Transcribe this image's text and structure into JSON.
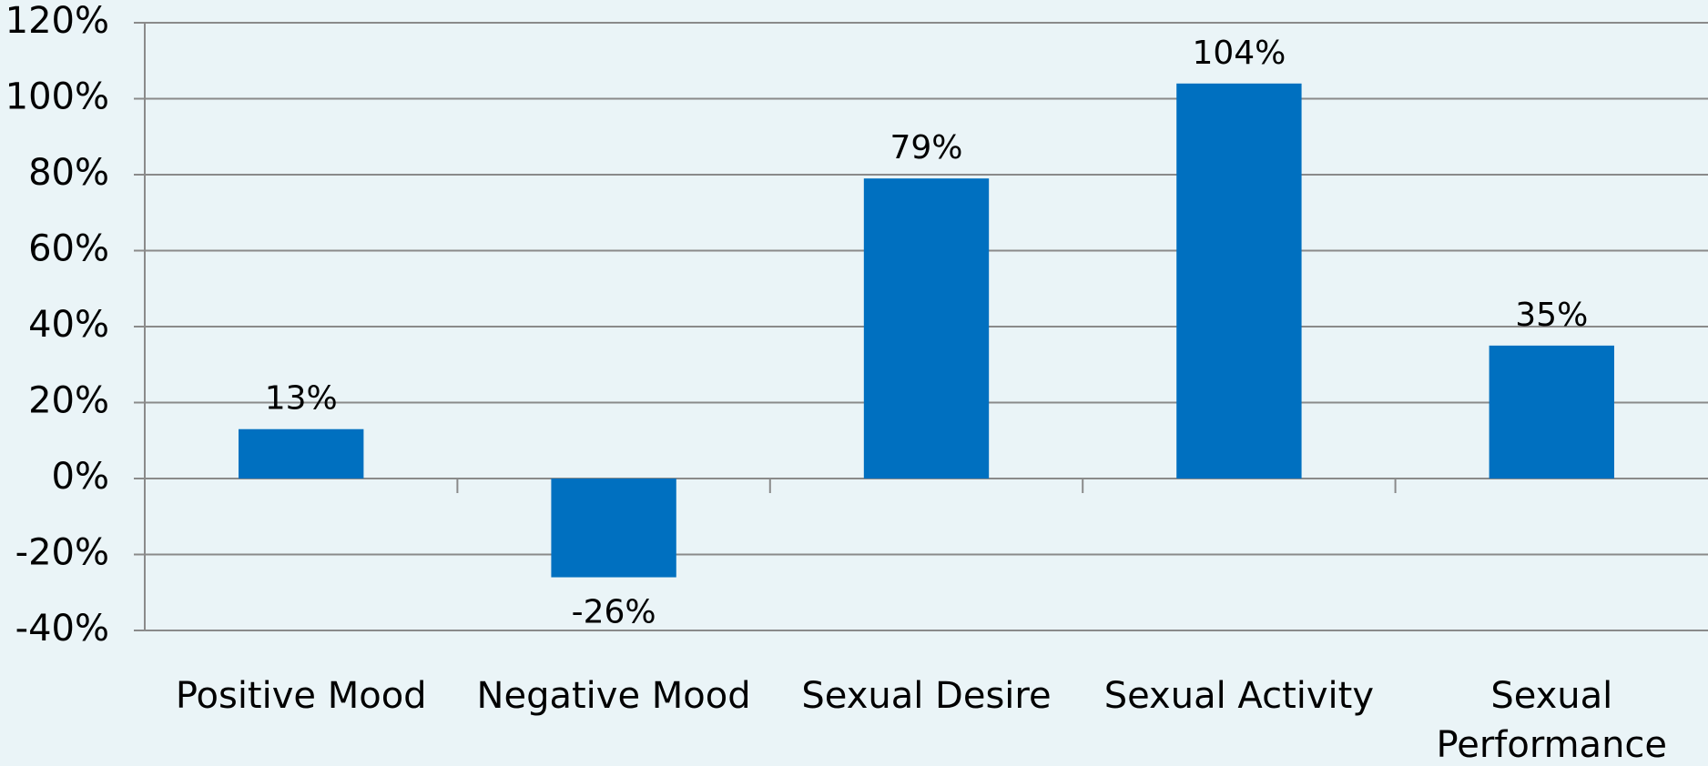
{
  "chart_data": {
    "type": "bar",
    "categories": [
      "Positive Mood",
      "Negative Mood",
      "Sexual Desire",
      "Sexual Activity",
      "Sexual Performance"
    ],
    "values": [
      13,
      -26,
      79,
      104,
      35
    ],
    "value_labels": [
      "13%",
      "-26%",
      "79%",
      "104%",
      "35%"
    ],
    "color": "#0070c0",
    "ylim": [
      -40,
      120
    ],
    "yticks": [
      {
        "value": -40,
        "label": "-40%"
      },
      {
        "value": -20,
        "label": "-20%"
      },
      {
        "value": 0,
        "label": "0%"
      },
      {
        "value": 20,
        "label": "20%"
      },
      {
        "value": 40,
        "label": "40%"
      },
      {
        "value": 60,
        "label": "60%"
      },
      {
        "value": 80,
        "label": "80%"
      },
      {
        "value": 100,
        "label": "100%"
      },
      {
        "value": 120,
        "label": "120%"
      }
    ],
    "grid": true
  }
}
